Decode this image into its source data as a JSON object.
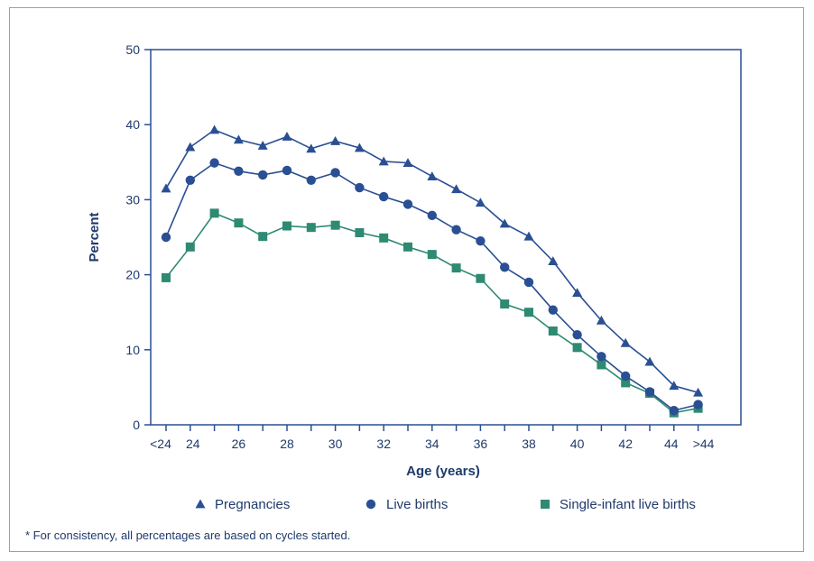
{
  "chart_data": {
    "type": "line",
    "title": "",
    "xlabel": "Age (years)",
    "ylabel": "Percent",
    "ylim": [
      0,
      50
    ],
    "yticks": [
      0,
      10,
      20,
      30,
      40,
      50
    ],
    "x": [
      "<24",
      "24",
      "25",
      "26",
      "27",
      "28",
      "29",
      "30",
      "31",
      "32",
      "33",
      "34",
      "35",
      "36",
      "37",
      "38",
      "39",
      "40",
      "41",
      "42",
      "43",
      "44",
      ">44"
    ],
    "xtick_labels": [
      "<24",
      "24",
      "26",
      "28",
      "30",
      "32",
      "34",
      "36",
      "38",
      "40",
      "42",
      "44",
      ">44"
    ],
    "series": [
      {
        "name": "Pregnancies",
        "marker": "triangle",
        "color": "#2a4f93",
        "values": [
          31.5,
          37.0,
          39.3,
          38.0,
          37.2,
          38.4,
          36.8,
          37.8,
          36.9,
          35.1,
          34.9,
          33.1,
          31.4,
          29.6,
          26.8,
          25.1,
          21.8,
          17.6,
          13.9,
          10.9,
          8.4,
          5.2,
          4.3
        ]
      },
      {
        "name": "Live births",
        "marker": "circle",
        "color": "#2a4f93",
        "values": [
          25.0,
          32.6,
          34.9,
          33.8,
          33.3,
          33.9,
          32.6,
          33.6,
          31.6,
          30.4,
          29.4,
          27.9,
          26.0,
          24.5,
          21.0,
          19.0,
          15.3,
          12.0,
          9.1,
          6.5,
          4.4,
          1.9,
          2.7
        ]
      },
      {
        "name": "Single-infant live births",
        "marker": "square",
        "color": "#2e8a72",
        "values": [
          19.6,
          23.7,
          28.2,
          26.9,
          25.1,
          26.5,
          26.3,
          26.6,
          25.6,
          24.9,
          23.7,
          22.7,
          20.9,
          19.5,
          16.1,
          15.0,
          12.5,
          10.3,
          8.0,
          5.6,
          4.2,
          1.6,
          2.2
        ]
      }
    ],
    "legend_position": "bottom",
    "grid": false,
    "footnote": "* For consistency, all percentages are based on cycles started."
  }
}
